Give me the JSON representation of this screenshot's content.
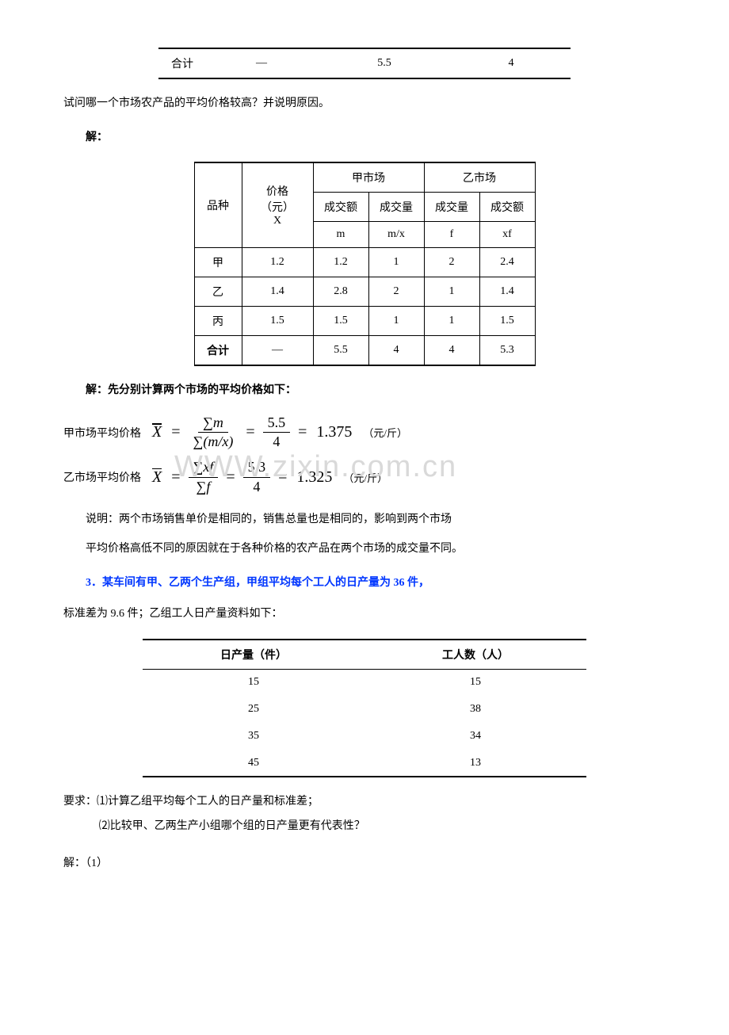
{
  "top_table": {
    "row": [
      "合计",
      "—",
      "5.5",
      "4"
    ]
  },
  "q_text": "试问哪一个市场农产品的平均价格较高？并说明原因。",
  "solve_label": "解：",
  "mid_table": {
    "head": {
      "col_item": "品种",
      "col_price_line1": "价格（元）",
      "col_price_line2": "X",
      "market_a": "甲市场",
      "market_b": "乙市场",
      "a_col1": "成交额",
      "a_col2": "成交量",
      "b_col1": "成交量",
      "b_col2": "成交额",
      "a_sym1": "m",
      "a_sym2": "m/x",
      "b_sym1": "f",
      "b_sym2": "xf"
    },
    "rows": [
      {
        "name": "甲",
        "price": "1.2",
        "m": "1.2",
        "mx": "1",
        "f": "2",
        "xf": "2.4"
      },
      {
        "name": "乙",
        "price": "1.4",
        "m": "2.8",
        "mx": "2",
        "f": "1",
        "xf": "1.4"
      },
      {
        "name": "丙",
        "price": "1.5",
        "m": "1.5",
        "mx": "1",
        "f": "1",
        "xf": "1.5"
      }
    ],
    "total": {
      "name": "合计",
      "price": "—",
      "m": "5.5",
      "mx": "4",
      "f": "4",
      "xf": "5.3"
    }
  },
  "solve_intro": "解：先分别计算两个市场的平均价格如下：",
  "formula_a": {
    "label": "甲市场平均价格",
    "num1": "∑m",
    "den1": "∑(m / x)",
    "num2": "5.5",
    "den2": "4",
    "result": "1.375",
    "unit": "（元/斤）"
  },
  "formula_b": {
    "label": "乙市场平均价格",
    "num1": "∑xf",
    "den1": "∑f",
    "num2": "5.3",
    "den2": "4",
    "result": "1.325",
    "unit": "（元/斤）"
  },
  "watermark_text": "WWW.zixin.com.cn",
  "explain_1": "说明：两个市场销售单价是相同的，销售总量也是相同的，影响到两个市场",
  "explain_2": "平均价格高低不同的原因就在于各种价格的农产品在两个市场的成交量不同。",
  "q3_title": "3．某车间有甲、乙两个生产组，甲组平均每个工人的日产量为 36 件，",
  "q3_line2": "标准差为 9.6 件；乙组工人日产量资料如下：",
  "bot_table": {
    "head": [
      "日产量（件）",
      "工人数（人）"
    ],
    "rows": [
      [
        "15",
        "15"
      ],
      [
        "25",
        "38"
      ],
      [
        "35",
        "34"
      ],
      [
        "45",
        "13"
      ]
    ]
  },
  "req_label": "要求：",
  "req_1": "⑴计算乙组平均每个工人的日产量和标准差；",
  "req_2": "⑵比较甲、乙两生产小组哪个组的日产量更有代表性？",
  "ans_label": "解：（1）"
}
